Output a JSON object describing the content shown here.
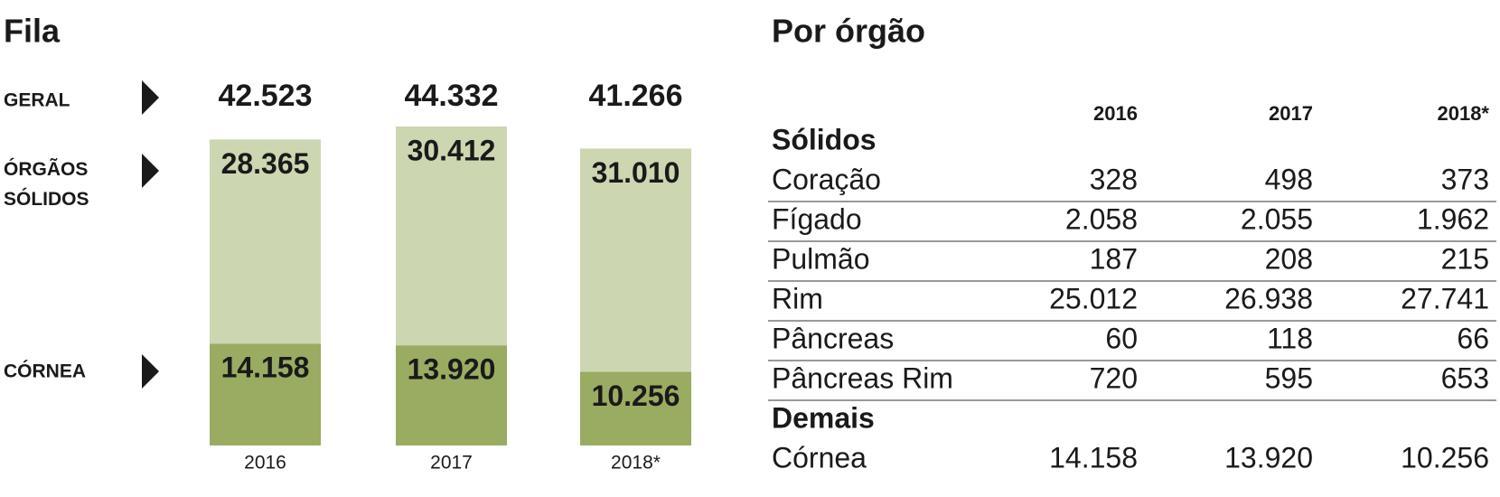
{
  "chart_data": {
    "type": "stacked-bar",
    "title": "Fila",
    "categories": [
      "2016",
      "2017",
      "2018*"
    ],
    "totals": {
      "name": "GERAL",
      "values": [
        42523,
        44332,
        41266
      ],
      "value_labels": [
        "42.523",
        "44.332",
        "41.266"
      ]
    },
    "series": [
      {
        "name": "CÓRNEA",
        "color": "#9aab62",
        "values": [
          14158,
          13920,
          10256
        ],
        "value_labels": [
          "14.158",
          "13.920",
          "10.256"
        ]
      },
      {
        "name": "ÓRGÃOS SÓLIDOS",
        "color": "#ccd6b1",
        "values": [
          28365,
          30412,
          31010
        ],
        "value_labels": [
          "28.365",
          "30.412",
          "31.010"
        ]
      }
    ]
  },
  "table": {
    "title": "Por órgão",
    "columns": [
      "2016",
      "2017",
      "2018*"
    ],
    "groups": [
      {
        "name": "Sólidos",
        "rows": [
          [
            "Coração",
            "328",
            "498",
            "373"
          ],
          [
            "Fígado",
            "2.058",
            "2.055",
            "1.962"
          ],
          [
            "Pulmão",
            "187",
            "208",
            "215"
          ],
          [
            "Rim",
            "25.012",
            "26.938",
            "27.741"
          ],
          [
            "Pâncreas",
            "60",
            "118",
            "66"
          ],
          [
            "Pâncreas Rim",
            "720",
            "595",
            "653"
          ]
        ]
      },
      {
        "name": "Demais",
        "rows": [
          [
            "Córnea",
            "14.158",
            "13.920",
            "10.256"
          ]
        ]
      }
    ]
  }
}
